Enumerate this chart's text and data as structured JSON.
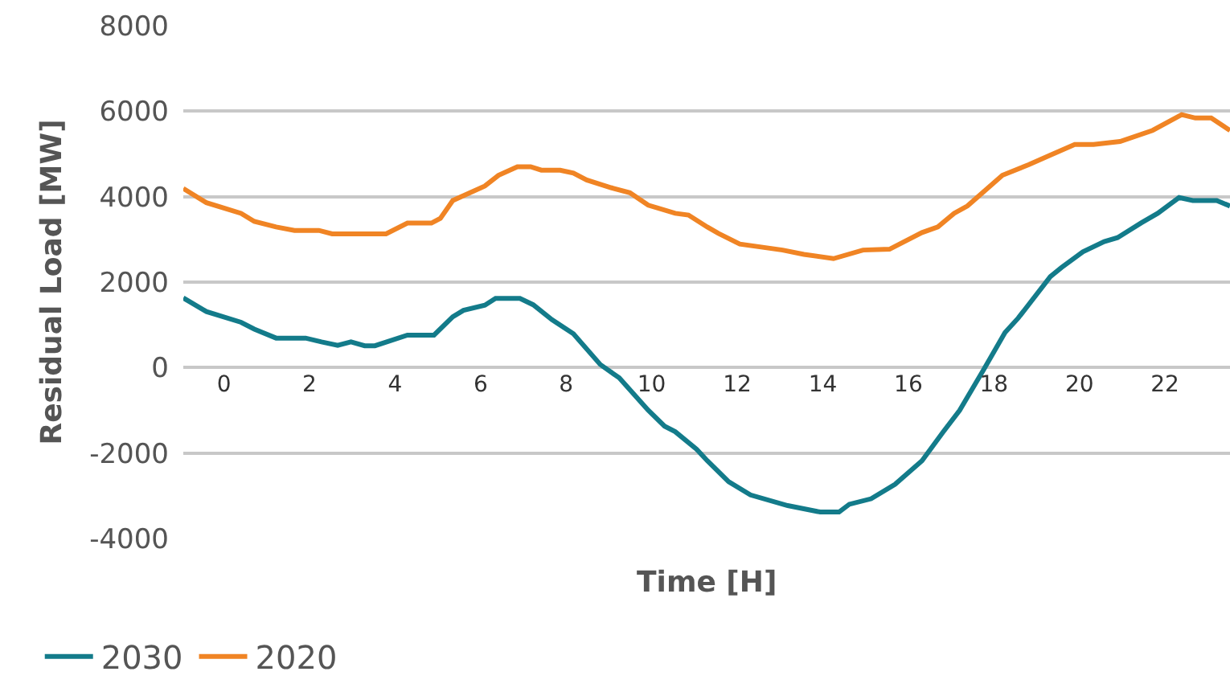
{
  "chart_data": {
    "type": "line",
    "xlabel": "Time [H]",
    "ylabel": "Residual Load [MW]",
    "xlim": [
      -0.95,
      23.52
    ],
    "xticks": [
      0,
      2,
      4,
      6,
      8,
      10,
      12,
      14,
      16,
      18,
      20,
      22
    ],
    "ylim": [
      -4000,
      8000
    ],
    "yticks": [
      -4000,
      -2000,
      0,
      2000,
      4000,
      6000,
      8000
    ],
    "grid": "y",
    "legend": "bottom left",
    "marker": "none",
    "line_style": "solid",
    "series": [
      {
        "name": "2030",
        "color": "#137b8a",
        "x": [
          -0.95,
          -0.41,
          0.4,
          0.71,
          1.22,
          1.91,
          2.28,
          2.66,
          2.97,
          3.29,
          3.53,
          4.29,
          4.91,
          5.35,
          5.6,
          6.1,
          6.35,
          6.92,
          7.23,
          7.67,
          8.17,
          8.8,
          9.24,
          9.92,
          10.3,
          10.55,
          11.05,
          11.3,
          11.8,
          12.31,
          13.18,
          13.94,
          14.38,
          14.62,
          15.13,
          15.69,
          16.32,
          16.82,
          17.2,
          17.76,
          18.26,
          18.57,
          19.32,
          19.58,
          20.08,
          20.58,
          20.89,
          21.45,
          21.83,
          22.33,
          22.65,
          23.21,
          23.52
        ],
        "values": [
          1630,
          1310,
          1060,
          900,
          690,
          690,
          600,
          520,
          600,
          510,
          510,
          760,
          760,
          1190,
          1340,
          1460,
          1620,
          1620,
          1470,
          1120,
          790,
          70,
          -240,
          -1000,
          -1370,
          -1500,
          -1910,
          -2180,
          -2670,
          -2980,
          -3230,
          -3380,
          -3380,
          -3200,
          -3070,
          -2730,
          -2180,
          -1500,
          -1000,
          -50,
          820,
          1160,
          2130,
          2340,
          2710,
          2950,
          3040,
          3390,
          3610,
          3980,
          3910,
          3910,
          3780
        ]
      },
      {
        "name": "2020",
        "color": "#f08424",
        "x": [
          -0.95,
          -0.41,
          0.4,
          0.71,
          1.22,
          1.65,
          2.22,
          2.53,
          3.79,
          4.29,
          4.85,
          5.06,
          5.35,
          6.1,
          6.42,
          6.86,
          7.17,
          7.42,
          7.86,
          8.17,
          8.48,
          9.05,
          9.49,
          9.92,
          10.55,
          10.86,
          11.3,
          11.56,
          12.06,
          12.56,
          13.06,
          13.56,
          14.25,
          14.94,
          15.56,
          16.32,
          16.69,
          17.07,
          17.38,
          18.2,
          18.82,
          19.32,
          19.89,
          20.33,
          20.95,
          21.71,
          22.39,
          22.71,
          23.08,
          23.52
        ],
        "values": [
          4190,
          3860,
          3610,
          3420,
          3290,
          3210,
          3210,
          3130,
          3130,
          3380,
          3380,
          3490,
          3910,
          4250,
          4500,
          4700,
          4700,
          4620,
          4620,
          4550,
          4390,
          4210,
          4090,
          3800,
          3610,
          3570,
          3290,
          3140,
          2890,
          2820,
          2750,
          2650,
          2550,
          2750,
          2770,
          3160,
          3290,
          3610,
          3780,
          4500,
          4750,
          4970,
          5220,
          5220,
          5290,
          5550,
          5920,
          5840,
          5840,
          5550
        ]
      }
    ]
  }
}
